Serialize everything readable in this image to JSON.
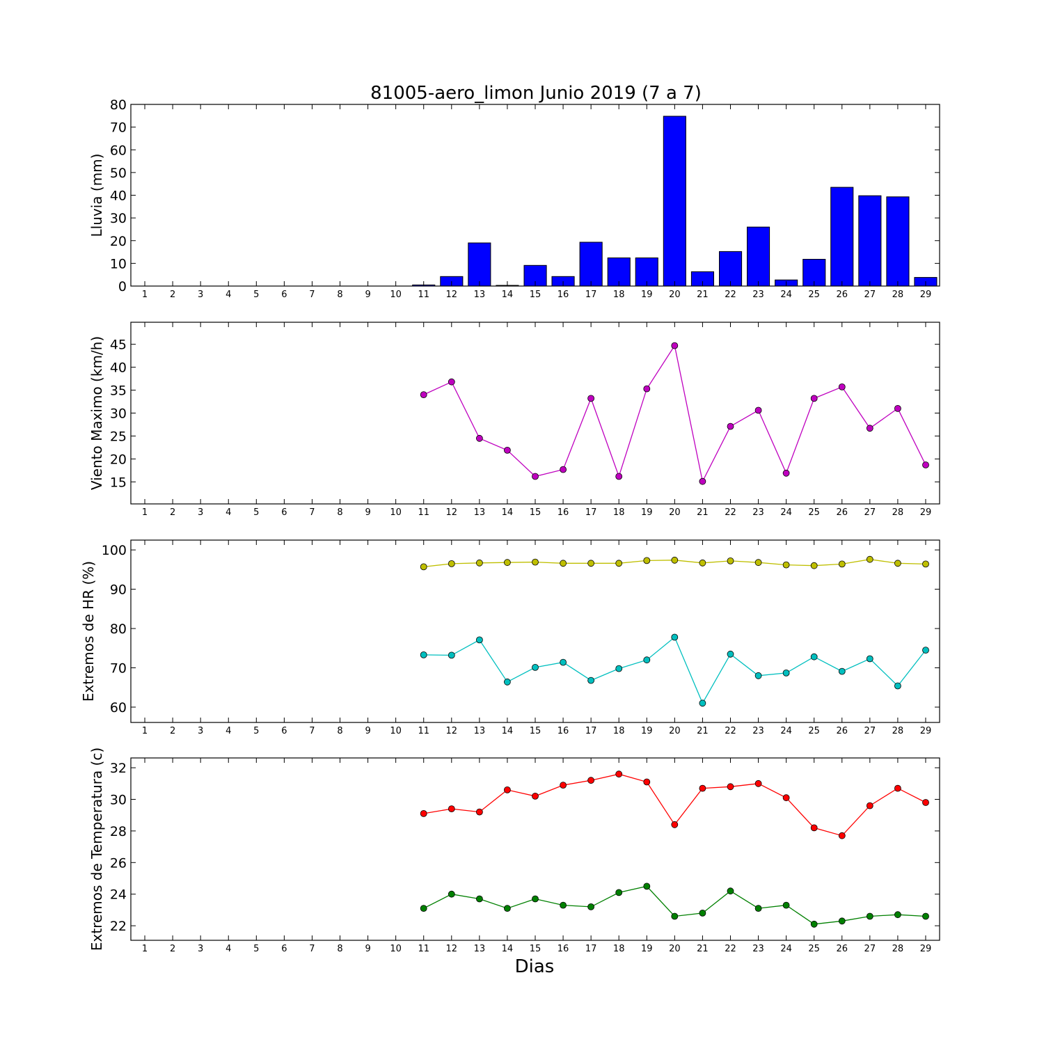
{
  "title": "81005-aero_limon Junio 2019  (7 a 7)",
  "xlabel": "Dias",
  "chart_data": [
    {
      "type": "bar",
      "ylabel": "Lluvia (mm)",
      "x": [
        1,
        2,
        3,
        4,
        5,
        6,
        7,
        8,
        9,
        10,
        11,
        12,
        13,
        14,
        15,
        16,
        17,
        18,
        19,
        20,
        21,
        22,
        23,
        24,
        25,
        26,
        27,
        28,
        29
      ],
      "xlim": [
        0.5,
        29.5
      ],
      "ylim": [
        0,
        80
      ],
      "yticks": [
        0,
        10,
        20,
        30,
        40,
        50,
        60,
        70,
        80
      ],
      "bar_color": "#0000ff",
      "series": [
        {
          "values": [
            0,
            0,
            0,
            0,
            0,
            0,
            0,
            0,
            0,
            0,
            0.5,
            4.2,
            19,
            0.3,
            9.1,
            4.2,
            19.3,
            12.4,
            12.4,
            74.8,
            6.3,
            15.2,
            26,
            2.7,
            11.8,
            43.5,
            39.8,
            39.3,
            3.8
          ]
        }
      ]
    },
    {
      "type": "line",
      "ylabel": "Viento Maximo (km/h)",
      "x": [
        1,
        2,
        3,
        4,
        5,
        6,
        7,
        8,
        9,
        10,
        11,
        12,
        13,
        14,
        15,
        16,
        17,
        18,
        19,
        20,
        21,
        22,
        23,
        24,
        25,
        26,
        27,
        28,
        29
      ],
      "xlim": [
        0.5,
        29.5
      ],
      "ylim": [
        10.2,
        49.8
      ],
      "yticks": [
        15,
        20,
        25,
        30,
        35,
        40,
        45
      ],
      "series": [
        {
          "color": "#bf00bf",
          "values": [
            null,
            null,
            null,
            null,
            null,
            null,
            null,
            null,
            null,
            null,
            34.0,
            36.8,
            24.5,
            21.9,
            16.2,
            17.7,
            33.2,
            16.2,
            35.3,
            44.7,
            15.1,
            27.1,
            30.6,
            16.9,
            33.2,
            35.7,
            26.7,
            31.0,
            18.7
          ]
        }
      ]
    },
    {
      "type": "line",
      "ylabel": "Extremos de HR (%)",
      "x": [
        1,
        2,
        3,
        4,
        5,
        6,
        7,
        8,
        9,
        10,
        11,
        12,
        13,
        14,
        15,
        16,
        17,
        18,
        19,
        20,
        21,
        22,
        23,
        24,
        25,
        26,
        27,
        28,
        29
      ],
      "xlim": [
        0.5,
        29.5
      ],
      "ylim": [
        56.1,
        102.5
      ],
      "yticks": [
        60,
        70,
        80,
        90,
        100
      ],
      "series": [
        {
          "color": "#bfbf00",
          "values": [
            null,
            null,
            null,
            null,
            null,
            null,
            null,
            null,
            null,
            null,
            95.7,
            96.5,
            96.7,
            96.8,
            96.9,
            96.6,
            96.6,
            96.6,
            97.3,
            97.4,
            96.7,
            97.2,
            96.8,
            96.2,
            96.0,
            96.4,
            97.6,
            96.6,
            96.4
          ]
        },
        {
          "color": "#00bfbf",
          "values": [
            null,
            null,
            null,
            null,
            null,
            null,
            null,
            null,
            null,
            null,
            73.3,
            73.2,
            77.1,
            66.4,
            70.1,
            71.4,
            66.8,
            69.8,
            72.0,
            77.8,
            61.0,
            73.5,
            68.0,
            68.7,
            72.8,
            69.1,
            72.3,
            65.4,
            74.5
          ]
        }
      ]
    },
    {
      "type": "line",
      "ylabel": "Extremos de Temperatura (c)",
      "x": [
        1,
        2,
        3,
        4,
        5,
        6,
        7,
        8,
        9,
        10,
        11,
        12,
        13,
        14,
        15,
        16,
        17,
        18,
        19,
        20,
        21,
        22,
        23,
        24,
        25,
        26,
        27,
        28,
        29
      ],
      "xlim": [
        0.5,
        29.5
      ],
      "ylim": [
        21.08,
        32.62
      ],
      "yticks": [
        22,
        24,
        26,
        28,
        30,
        32
      ],
      "series": [
        {
          "color": "#ff0000",
          "values": [
            null,
            null,
            null,
            null,
            null,
            null,
            null,
            null,
            null,
            null,
            29.1,
            29.4,
            29.2,
            30.6,
            30.2,
            30.9,
            31.2,
            31.6,
            31.1,
            28.4,
            30.7,
            30.8,
            31.0,
            30.1,
            28.2,
            27.7,
            29.6,
            30.7,
            29.8
          ]
        },
        {
          "color": "#008000",
          "values": [
            null,
            null,
            null,
            null,
            null,
            null,
            null,
            null,
            null,
            null,
            23.1,
            24.0,
            23.7,
            23.1,
            23.7,
            23.3,
            23.2,
            24.1,
            24.5,
            22.6,
            22.8,
            24.2,
            23.1,
            23.3,
            22.1,
            22.3,
            22.6,
            22.7,
            22.6
          ]
        }
      ]
    }
  ]
}
